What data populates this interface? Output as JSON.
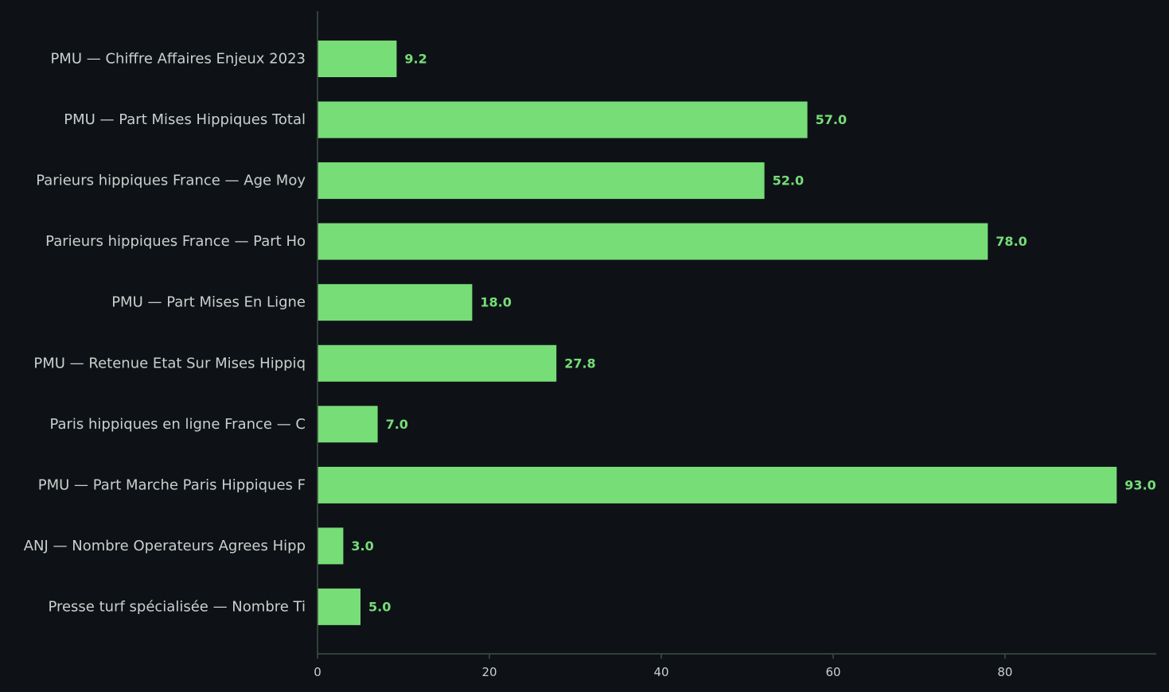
{
  "colors": {
    "background": "#0e1217",
    "bar": "#77dd77",
    "axis": "#3e4f43",
    "text": "#c9d0cc"
  },
  "chart_data": {
    "type": "bar",
    "orientation": "horizontal",
    "categories": [
      "PMU — Chiffre Affaires Enjeux 2023",
      "PMU — Part Mises Hippiques Total",
      "Parieurs hippiques France — Age Moy",
      "Parieurs hippiques France — Part Ho",
      "PMU — Part Mises En Ligne",
      "PMU — Retenue Etat Sur Mises Hippiq",
      "Paris hippiques en ligne France — C",
      "PMU — Part Marche Paris Hippiques F",
      "ANJ — Nombre Operateurs Agrees Hipp",
      "Presse turf spécialisée — Nombre Ti"
    ],
    "values": [
      9.2,
      57.0,
      52.0,
      78.0,
      18.0,
      27.8,
      7.0,
      93.0,
      3.0,
      5.0
    ],
    "value_labels": [
      "9.2",
      "57.0",
      "52.0",
      "78.0",
      "18.0",
      "27.8",
      "7.0",
      "93.0",
      "3.0",
      "5.0"
    ],
    "xticks": [
      0,
      20,
      40,
      60,
      80
    ],
    "xtick_labels": [
      "0",
      "20",
      "40",
      "60",
      "80"
    ],
    "xlim": [
      0,
      97.6
    ],
    "grid": false,
    "legend": "none"
  }
}
